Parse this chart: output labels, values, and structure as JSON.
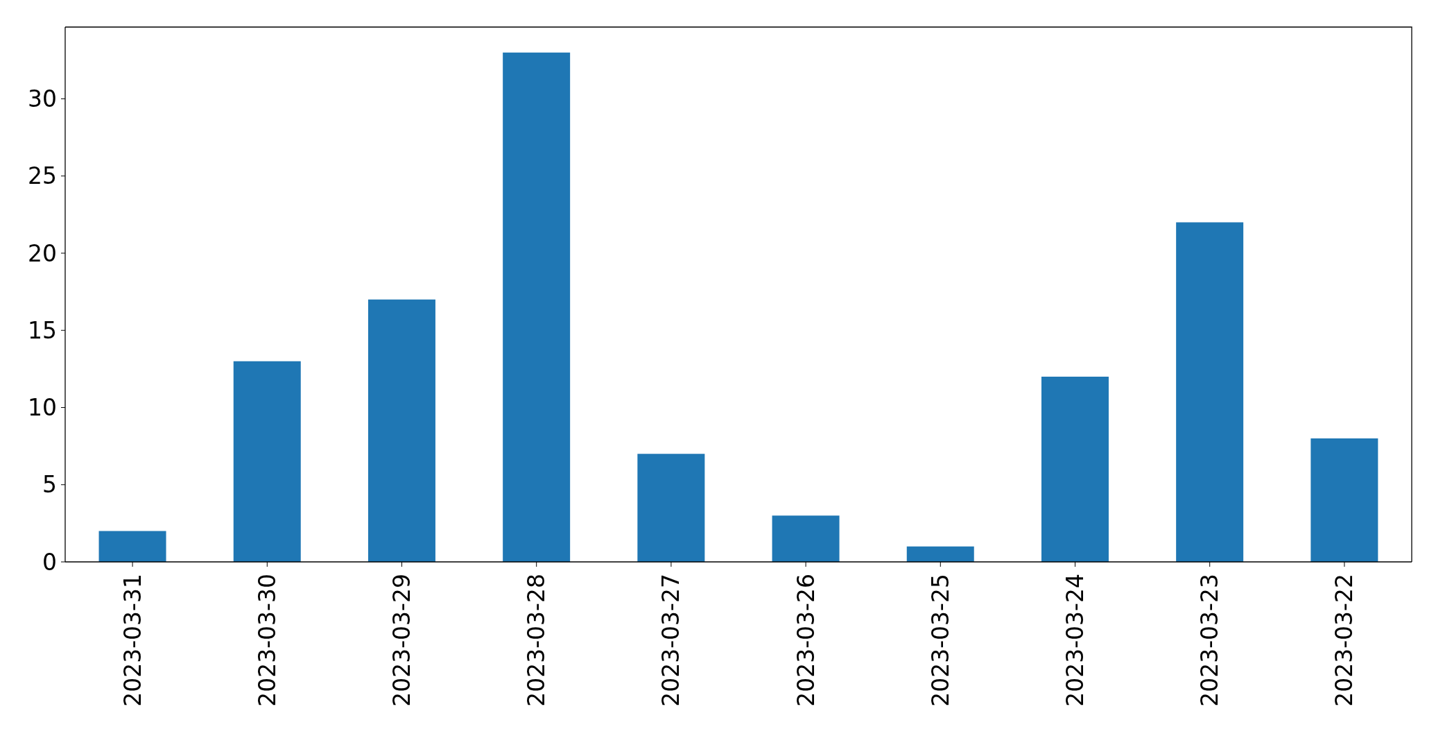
{
  "chart_data": {
    "type": "bar",
    "categories": [
      "2023-03-31",
      "2023-03-30",
      "2023-03-29",
      "2023-03-28",
      "2023-03-27",
      "2023-03-26",
      "2023-03-25",
      "2023-03-24",
      "2023-03-23",
      "2023-03-22"
    ],
    "values": [
      2,
      13,
      17,
      33,
      7,
      3,
      1,
      12,
      22,
      8
    ],
    "color": "#1f77b4",
    "ylim": [
      0,
      34.65
    ],
    "yticks": [
      0,
      5,
      10,
      15,
      20,
      25,
      30
    ]
  }
}
